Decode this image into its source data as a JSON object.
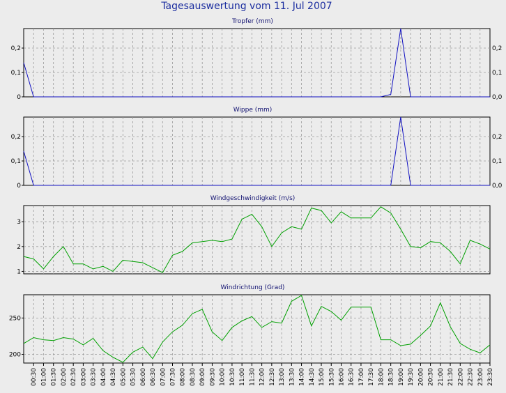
{
  "title": "Tagesauswertung vom 11. Jul 2007",
  "colors": {
    "background": "#ececec",
    "title": "#1d2fa0",
    "rain": "#1010c0",
    "wind": "#00a000",
    "grid": "#9a9a9a"
  },
  "chart_data": [
    {
      "type": "line",
      "title": "Tropfer (mm)",
      "ylim": [
        0,
        0.28
      ],
      "yticks": [
        0,
        0.1,
        0.2
      ],
      "ytick_labels": [
        "0",
        "0,1",
        "0,2"
      ],
      "extra_ytick_labels": [
        "0,0",
        "0,1",
        "0,2"
      ],
      "grid": true,
      "series_color": "#1010c0",
      "x": [
        "00:00",
        "00:30",
        "01:00",
        "01:30",
        "02:00",
        "02:30",
        "03:00",
        "03:30",
        "04:00",
        "04:30",
        "05:00",
        "05:30",
        "06:00",
        "06:30",
        "07:00",
        "07:30",
        "08:00",
        "08:30",
        "09:00",
        "09:30",
        "10:00",
        "10:30",
        "11:00",
        "11:30",
        "12:00",
        "12:30",
        "13:00",
        "13:30",
        "14:00",
        "14:30",
        "15:00",
        "15:30",
        "16:00",
        "16:30",
        "17:00",
        "17:30",
        "18:00",
        "18:30",
        "19:00",
        "19:30",
        "20:00",
        "20:30",
        "21:00",
        "21:30",
        "22:00",
        "22:30",
        "23:00",
        "23:30"
      ],
      "values": [
        0.14,
        0,
        0,
        0,
        0,
        0,
        0,
        0,
        0,
        0,
        0,
        0,
        0,
        0,
        0,
        0,
        0,
        0,
        0,
        0,
        0,
        0,
        0,
        0,
        0,
        0,
        0,
        0,
        0,
        0,
        0,
        0,
        0,
        0,
        0,
        0,
        0,
        0.01,
        0.28,
        0,
        0,
        0,
        0,
        0,
        0,
        0,
        0,
        0
      ]
    },
    {
      "type": "line",
      "title": "Wippe (mm)",
      "ylim": [
        0,
        0.28
      ],
      "yticks": [
        0,
        0.1,
        0.2
      ],
      "ytick_labels": [
        "0",
        "0,1",
        "0,2"
      ],
      "extra_ytick_labels": [
        "0,0",
        "0,1",
        "0,2"
      ],
      "grid": true,
      "series_color": "#1010c0",
      "x": [
        "00:00",
        "00:30",
        "01:00",
        "01:30",
        "02:00",
        "02:30",
        "03:00",
        "03:30",
        "04:00",
        "04:30",
        "05:00",
        "05:30",
        "06:00",
        "06:30",
        "07:00",
        "07:30",
        "08:00",
        "08:30",
        "09:00",
        "09:30",
        "10:00",
        "10:30",
        "11:00",
        "11:30",
        "12:00",
        "12:30",
        "13:00",
        "13:30",
        "14:00",
        "14:30",
        "15:00",
        "15:30",
        "16:00",
        "16:30",
        "17:00",
        "17:30",
        "18:00",
        "18:30",
        "19:00",
        "19:30",
        "20:00",
        "20:30",
        "21:00",
        "21:30",
        "22:00",
        "22:30",
        "23:00",
        "23:30"
      ],
      "values": [
        0.14,
        0,
        0,
        0,
        0,
        0,
        0,
        0,
        0,
        0,
        0,
        0,
        0,
        0,
        0,
        0,
        0,
        0,
        0,
        0,
        0,
        0,
        0,
        0,
        0,
        0,
        0,
        0,
        0,
        0,
        0,
        0,
        0,
        0,
        0,
        0,
        0,
        0,
        0.28,
        0,
        0,
        0,
        0,
        0,
        0,
        0,
        0,
        0
      ]
    },
    {
      "type": "line",
      "title": "Windgeschwindigkeit (m/s)",
      "ylim": [
        0.9,
        3.65
      ],
      "yticks": [
        1,
        2,
        3
      ],
      "ytick_labels": [
        "1",
        "2",
        "3"
      ],
      "grid": true,
      "series_color": "#00a000",
      "x": [
        "00:00",
        "00:30",
        "01:00",
        "01:30",
        "02:00",
        "02:30",
        "03:00",
        "03:30",
        "04:00",
        "04:30",
        "05:00",
        "05:30",
        "06:00",
        "06:30",
        "07:00",
        "07:30",
        "08:00",
        "08:30",
        "09:00",
        "09:30",
        "10:00",
        "10:30",
        "11:00",
        "11:30",
        "12:00",
        "12:30",
        "13:00",
        "13:30",
        "14:00",
        "14:30",
        "15:00",
        "15:30",
        "16:00",
        "16:30",
        "17:00",
        "17:30",
        "18:00",
        "18:30",
        "19:00",
        "19:30",
        "20:00",
        "20:30",
        "21:00",
        "21:30",
        "22:00",
        "22:30",
        "23:00",
        "23:30"
      ],
      "values": [
        1.6,
        1.5,
        1.1,
        1.6,
        2.0,
        1.3,
        1.3,
        1.1,
        1.2,
        1.0,
        1.45,
        1.4,
        1.35,
        1.15,
        0.95,
        1.65,
        1.8,
        2.15,
        2.2,
        2.25,
        2.2,
        2.3,
        3.1,
        3.3,
        2.8,
        2.0,
        2.55,
        2.8,
        2.7,
        3.55,
        3.45,
        2.95,
        3.4,
        3.15,
        3.15,
        3.15,
        3.6,
        3.35,
        2.7,
        2.0,
        1.95,
        2.2,
        2.15,
        1.8,
        1.3,
        2.25,
        2.1,
        1.9
      ]
    },
    {
      "type": "line",
      "title": "Windrichtung (Grad)",
      "ylim": [
        188,
        282
      ],
      "yticks": [
        200,
        250
      ],
      "ytick_labels": [
        "200",
        "250"
      ],
      "grid": true,
      "series_color": "#00a000",
      "x": [
        "00:00",
        "00:30",
        "01:00",
        "01:30",
        "02:00",
        "02:30",
        "03:00",
        "03:30",
        "04:00",
        "04:30",
        "05:00",
        "05:30",
        "06:00",
        "06:30",
        "07:00",
        "07:30",
        "08:00",
        "08:30",
        "09:00",
        "09:30",
        "10:00",
        "10:30",
        "11:00",
        "11:30",
        "12:00",
        "12:30",
        "13:00",
        "13:30",
        "14:00",
        "14:30",
        "15:00",
        "15:30",
        "16:00",
        "16:30",
        "17:00",
        "17:30",
        "18:00",
        "18:30",
        "19:00",
        "19:30",
        "20:00",
        "20:30",
        "21:00",
        "21:30",
        "22:00",
        "22:30",
        "23:00",
        "23:30"
      ],
      "values": [
        215,
        223,
        220,
        219,
        223,
        221,
        213,
        222,
        205,
        196,
        189,
        203,
        210,
        194,
        217,
        231,
        240,
        256,
        262,
        231,
        219,
        237,
        246,
        252,
        237,
        245,
        243,
        273,
        281,
        239,
        266,
        259,
        247,
        265,
        265,
        265,
        220,
        220,
        212,
        214,
        226,
        239,
        271,
        238,
        215,
        207,
        202,
        213
      ],
      "xtick_labels": [
        "00:30",
        "01:00",
        "01:30",
        "02:00",
        "02:30",
        "03:00",
        "03:30",
        "04:00",
        "04:30",
        "05:00",
        "05:30",
        "06:00",
        "06:30",
        "07:00",
        "07:30",
        "08:00",
        "08:30",
        "09:00",
        "09:30",
        "10:00",
        "10:30",
        "11:00",
        "11:30",
        "12:00",
        "12:30",
        "13:00",
        "13:30",
        "14:00",
        "14:30",
        "15:00",
        "15:30",
        "16:00",
        "16:30",
        "17:00",
        "17:30",
        "18:00",
        "18:30",
        "19:00",
        "19:30",
        "20:00",
        "20:30",
        "21:00",
        "21:30",
        "22:00",
        "22:30",
        "23:00",
        "23:30"
      ]
    }
  ]
}
